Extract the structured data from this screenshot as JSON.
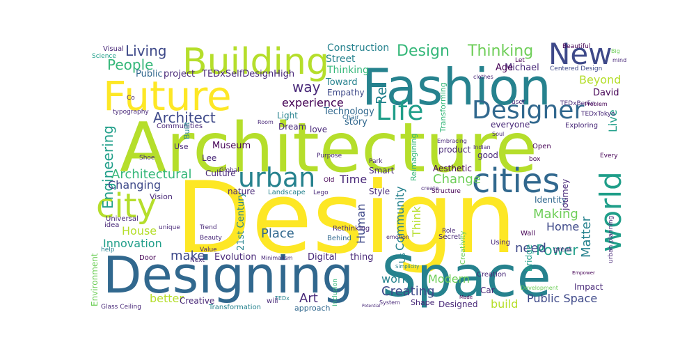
{
  "words": [
    "Design",
    "Architecture",
    "Designing",
    "Space",
    "Fashion",
    "Future",
    "Building",
    "New",
    "Life",
    "Designer",
    "cities",
    "city",
    "urban",
    "world",
    "Architect",
    "Engineering",
    "Living",
    "People",
    "Design",
    "Thinking",
    "Construction",
    "Street",
    "Thinking",
    "TEDxSelfDesignHigh",
    "project",
    "Public",
    "way",
    "experience",
    "Empathy",
    "Toward",
    "Technology",
    "Light",
    "Dream",
    "story",
    "love",
    "Beyond",
    "David",
    "Live",
    "Michael",
    "Age",
    "Museum",
    "Lee",
    "Architectural",
    "Changing",
    "Culture",
    "Time",
    "Change",
    "Making",
    "Identity",
    "Power",
    "Home",
    "Matter",
    "need",
    "House",
    "Innovation",
    "make",
    "Place",
    "Human",
    "Community",
    "Think",
    "21st Century",
    "Evolution",
    "Digital",
    "thing",
    "work",
    "Modern",
    "Creating",
    "Art",
    "better",
    "Creative",
    "build",
    "Public Space",
    "Designed",
    "Shape",
    "Transformation",
    "approach",
    "Glass Ceiling",
    "Environment",
    "Impact",
    "Aesthetic",
    "product",
    "Smart",
    "Style",
    "nature",
    "Landscape",
    "Lego",
    "Vision",
    "journey",
    "good",
    "Exploring",
    "TEDxTokyo",
    "TEDxBerlin",
    "everyone",
    "Open",
    "Every",
    "Beautiful",
    "Centered Design",
    "Secret",
    "Creativity",
    "Wall",
    "Using",
    "great",
    "Car",
    "Creation",
    "Behind",
    "Rethinking",
    "Beauty",
    "Value",
    "Trend",
    "unique",
    "Universal",
    "idea",
    "help",
    "Door",
    "Next",
    "Minimalism",
    "Use",
    "Shoe",
    "Communities",
    "typography",
    "Co",
    "Visual",
    "Science",
    "Global",
    "Purpose",
    "Old",
    "Room",
    "Chair",
    "Problem",
    "Let",
    "user",
    "Indian",
    "Soul",
    "box",
    "Embracing",
    "Park",
    "Empower",
    "Development",
    "urban planning",
    "Simplicity",
    "Inclusion",
    "TEDx",
    "will",
    "System",
    "Made",
    "Potential",
    "Structure",
    "create",
    "Role",
    "emotion",
    "Reimagining",
    "Transforming",
    "Built",
    "clothes",
    "mind",
    "Big",
    "Bridge",
    "Re",
    "Us"
  ]
}
